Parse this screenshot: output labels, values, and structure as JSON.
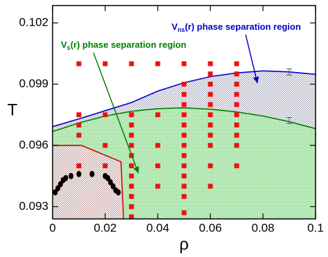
{
  "chart_data": {
    "type": "phase-diagram",
    "xlabel": "ρ",
    "ylabel": "T",
    "xlim": [
      0,
      0.1
    ],
    "ylim": [
      0.0924,
      0.10285
    ],
    "xticks": [
      0,
      0.02,
      0.04,
      0.06,
      0.08,
      0.1
    ],
    "yticks": [
      0.093,
      0.096,
      0.099,
      0.102
    ],
    "annotations": [
      {
        "text": "V",
        "sub": "ns",
        "rest": "(r) phase separation region",
        "color": "#0000cc"
      },
      {
        "text": "V",
        "sub": "s",
        "rest": "(r) phase separation region",
        "color": "#008000"
      }
    ],
    "series": [
      {
        "kind": "line",
        "color": "#0000cc",
        "fill": "#b0b0c0",
        "x": [
          0,
          0.01,
          0.02,
          0.03,
          0.04,
          0.05,
          0.06,
          0.07,
          0.08,
          0.09,
          0.1
        ],
        "values": [
          0.09692,
          0.0973,
          0.0977,
          0.0981,
          0.09866,
          0.09907,
          0.09937,
          0.09955,
          0.09965,
          0.0996,
          0.09948
        ]
      },
      {
        "kind": "line",
        "color": "#008000",
        "fill": "#9ee09e",
        "x": [
          0,
          0.01,
          0.02,
          0.03,
          0.04,
          0.05,
          0.06,
          0.07,
          0.08,
          0.09,
          0.1
        ],
        "values": [
          0.09668,
          0.0971,
          0.09744,
          0.09767,
          0.0978,
          0.09784,
          0.09777,
          0.09764,
          0.09744,
          0.09716,
          0.09682
        ]
      },
      {
        "kind": "line",
        "color": "#dd0000",
        "fill": "#d0a0a0",
        "x": [
          0,
          0.011,
          0.026,
          0.027
        ],
        "values": [
          0.096,
          0.096,
          0.0952,
          0.0924
        ]
      },
      {
        "kind": "squares",
        "color": "#ee1111",
        "x": [
          0.01,
          0.01,
          0.01,
          0.01,
          0.01,
          0.02,
          0.02,
          0.02,
          0.02,
          0.03,
          0.03,
          0.03,
          0.03,
          0.03,
          0.03,
          0.03,
          0.03,
          0.03,
          0.03,
          0.03,
          0.03,
          0.04,
          0.04,
          0.04,
          0.04,
          0.04,
          0.05,
          0.05,
          0.05,
          0.05,
          0.05,
          0.05,
          0.05,
          0.05,
          0.05,
          0.05,
          0.05,
          0.05,
          0.05,
          0.05,
          0.06,
          0.06,
          0.06,
          0.06,
          0.06,
          0.06,
          0.06,
          0.06,
          0.06,
          0.06,
          0.06,
          0.07,
          0.07,
          0.07,
          0.07,
          0.07,
          0.07,
          0.07,
          0.07,
          0.07,
          0.07
        ],
        "values": [
          0.1,
          0.0975,
          0.097,
          0.0965,
          0.095,
          0.1,
          0.0975,
          0.096,
          0.095,
          0.1,
          0.0975,
          0.097,
          0.0965,
          0.096,
          0.0955,
          0.095,
          0.0945,
          0.094,
          0.0935,
          0.093,
          0.0925,
          0.1,
          0.0975,
          0.096,
          0.095,
          0.094,
          0.1,
          0.099,
          0.0985,
          0.098,
          0.0975,
          0.097,
          0.0965,
          0.096,
          0.0955,
          0.095,
          0.0945,
          0.094,
          0.0935,
          0.0927,
          0.1,
          0.0995,
          0.099,
          0.0985,
          0.098,
          0.0975,
          0.097,
          0.0965,
          0.096,
          0.095,
          0.094,
          0.1,
          0.0995,
          0.099,
          0.0985,
          0.098,
          0.0975,
          0.097,
          0.0965,
          0.096,
          0.095
        ]
      },
      {
        "kind": "circles",
        "color": "#000000",
        "x": [
          0.001,
          0.002,
          0.003,
          0.004,
          0.005,
          0.007,
          0.01,
          0.015,
          0.02,
          0.021,
          0.022,
          0.023,
          0.024,
          0.025
        ],
        "values": [
          0.0937,
          0.0939,
          0.0941,
          0.0943,
          0.0944,
          0.0945,
          0.0946,
          0.0946,
          0.0945,
          0.0944,
          0.0942,
          0.094,
          0.0938,
          0.0937
        ]
      },
      {
        "kind": "errorbars",
        "color": "#555555",
        "x": [
          0.09,
          0.09
        ],
        "values": [
          0.0996,
          0.09722
        ],
        "errors": [
          0.00015,
          0.00015
        ]
      }
    ]
  }
}
